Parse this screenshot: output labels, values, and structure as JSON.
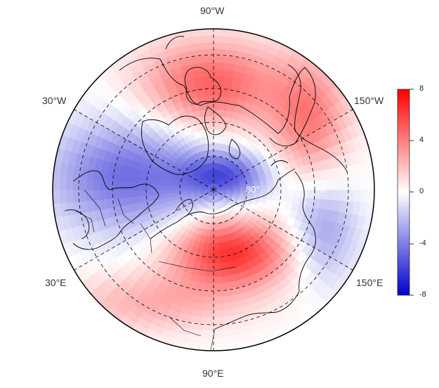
{
  "map": {
    "projection": "north-polar-stereographic",
    "longitude_labels": {
      "top": "90°W",
      "upper_left": "30°W",
      "upper_right": "150°W",
      "lower_left": "30°E",
      "lower_right": "150°E",
      "bottom": "90°E"
    },
    "latitude_labels": [
      "80°",
      "70°"
    ],
    "graticule_style": "dashed",
    "coastlines": "black"
  },
  "colorbar": {
    "ticks": [
      "8",
      "4",
      "0",
      "-4",
      "-8"
    ],
    "min": -8,
    "max": 8,
    "colormap": [
      "#0000cc",
      "#ffffff",
      "#ff0000"
    ]
  },
  "field_features": [
    {
      "label": "positive anomaly over Canadian Arctic and Alaska",
      "sign": 1
    },
    {
      "label": "negative anomaly over Greenland and North Atlantic",
      "sign": -1
    },
    {
      "label": "strong positive anomaly over central Siberia",
      "sign": 1
    },
    {
      "label": "negative anomaly over North Pacific",
      "sign": -1
    }
  ]
}
